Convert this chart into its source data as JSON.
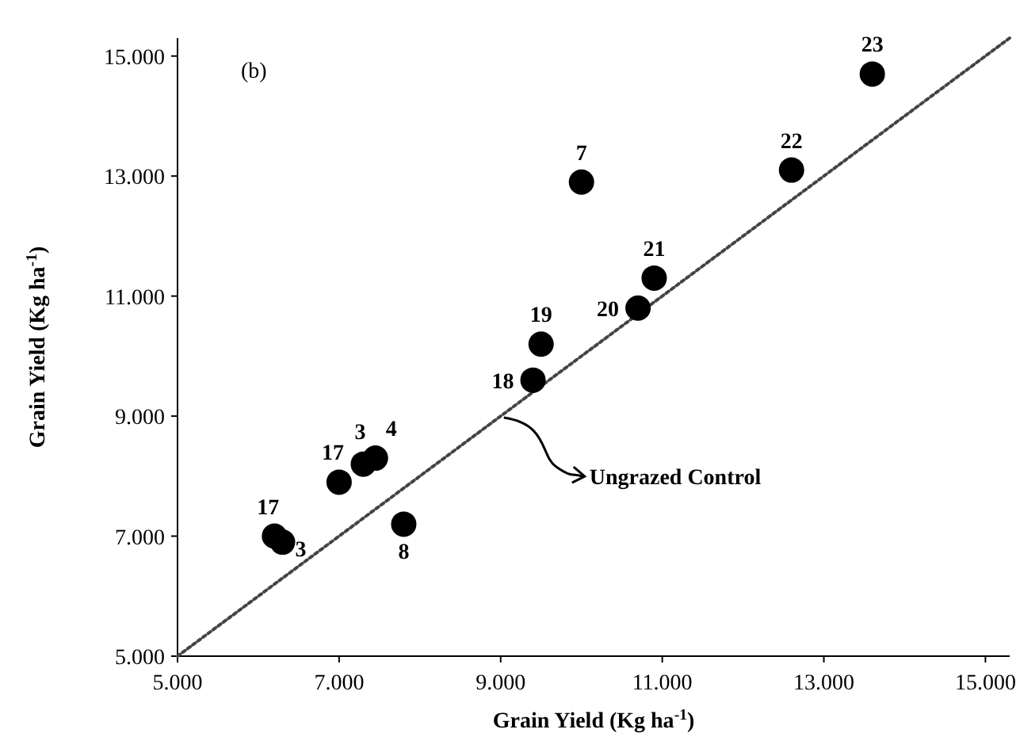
{
  "chart_data": {
    "type": "scatter",
    "xlabel": "Grain Yield (Kg ha$^{-1}$)",
    "ylabel": "Grain Yield (Kg ha$^{-1}$)",
    "xlim": [
      5000,
      15300
    ],
    "ylim": [
      5000,
      15300
    ],
    "xticks": [
      {
        "value": 5000,
        "label": "5.000"
      },
      {
        "value": 7000,
        "label": "7.000"
      },
      {
        "value": 9000,
        "label": "9.000"
      },
      {
        "value": 11000,
        "label": "11.000"
      },
      {
        "value": 13000,
        "label": "13.000"
      },
      {
        "value": 15000,
        "label": "15.000"
      }
    ],
    "yticks": [
      {
        "value": 5000,
        "label": "5.000"
      },
      {
        "value": 7000,
        "label": "7.000"
      },
      {
        "value": 9000,
        "label": "9.000"
      },
      {
        "value": 11000,
        "label": "11.000"
      },
      {
        "value": 13000,
        "label": "13.000"
      },
      {
        "value": 15000,
        "label": "15.000"
      }
    ],
    "grid": false,
    "annotations": [
      "(b)",
      {
        "text": "Ungrazed Control",
        "x": 9000,
        "y": 9000
      },
      {
        "text": "23",
        "x": 13600,
        "y": 14700
      },
      {
        "text": "22",
        "x": 12600,
        "y": 13100
      },
      {
        "text": "7",
        "x": 10000,
        "y": 12900
      },
      {
        "text": "21",
        "x": 10900,
        "y": 11300
      },
      {
        "text": "20",
        "x": 10700,
        "y": 10800
      },
      {
        "text": "19",
        "x": 9500,
        "y": 10200
      },
      {
        "text": "18",
        "x": 9400,
        "y": 9600
      },
      {
        "text": "17",
        "x": 7000,
        "y": 7900
      },
      {
        "text": "3",
        "x": 7300,
        "y": 8200
      },
      {
        "text": "4",
        "x": 7450,
        "y": 8300
      },
      {
        "text": "17",
        "x": 6200,
        "y": 7000
      },
      {
        "text": "3",
        "x": 6300,
        "y": 6900
      },
      {
        "text": "8",
        "x": 7800,
        "y": 7200
      }
    ],
    "series": [
      {
        "type": "line",
        "color": "#444444",
        "line_style": "dotted",
        "marker": "none",
        "x": [
          5000,
          15300
        ],
        "values": [
          5000,
          15300
        ]
      },
      {
        "color": "#000000",
        "marker": "circle",
        "x": [
          13600,
          12600,
          10000,
          10900,
          10700,
          9500,
          9400,
          7000,
          7300,
          7450,
          6200,
          6300,
          7800
        ],
        "values": [
          14700,
          13100,
          12900,
          11300,
          10800,
          10200,
          9600,
          7900,
          8200,
          8300,
          7000,
          6900,
          7200
        ]
      }
    ]
  }
}
